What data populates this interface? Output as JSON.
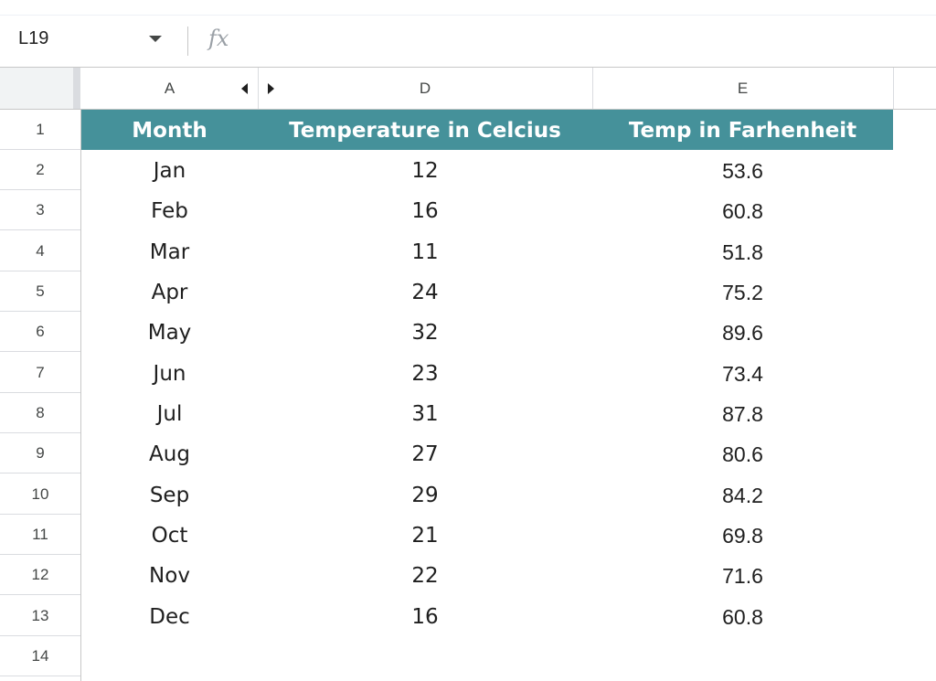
{
  "formula_bar": {
    "cell_reference": "L19",
    "fx_label": "fx",
    "formula_value": ""
  },
  "column_headers": [
    "A",
    "D",
    "E"
  ],
  "row_numbers": [
    "1",
    "2",
    "3",
    "4",
    "5",
    "6",
    "7",
    "8",
    "9",
    "10",
    "11",
    "12",
    "13",
    "14"
  ],
  "table": {
    "header": {
      "month": "Month",
      "celsius": "Temperature in Celcius",
      "fahrenheit": "Temp in Farhenheit"
    },
    "header_fill": "#45919a",
    "rows": [
      {
        "month": "Jan",
        "celsius": "12",
        "fahrenheit": "53.6"
      },
      {
        "month": "Feb",
        "celsius": "16",
        "fahrenheit": "60.8"
      },
      {
        "month": "Mar",
        "celsius": "11",
        "fahrenheit": "51.8"
      },
      {
        "month": "Apr",
        "celsius": "24",
        "fahrenheit": "75.2"
      },
      {
        "month": "May",
        "celsius": "32",
        "fahrenheit": "89.6"
      },
      {
        "month": "Jun",
        "celsius": "23",
        "fahrenheit": "73.4"
      },
      {
        "month": "Jul",
        "celsius": "31",
        "fahrenheit": "87.8"
      },
      {
        "month": "Aug",
        "celsius": "27",
        "fahrenheit": "80.6"
      },
      {
        "month": "Sep",
        "celsius": "29",
        "fahrenheit": "84.2"
      },
      {
        "month": "Oct",
        "celsius": "21",
        "fahrenheit": "69.8"
      },
      {
        "month": "Nov",
        "celsius": "22",
        "fahrenheit": "71.6"
      },
      {
        "month": "Dec",
        "celsius": "16",
        "fahrenheit": "60.8"
      }
    ]
  },
  "icons": {
    "name_box_dropdown": "chevron-down-icon",
    "hidden_columns_left": "arrow-left-icon",
    "hidden_columns_right": "arrow-right-icon"
  }
}
